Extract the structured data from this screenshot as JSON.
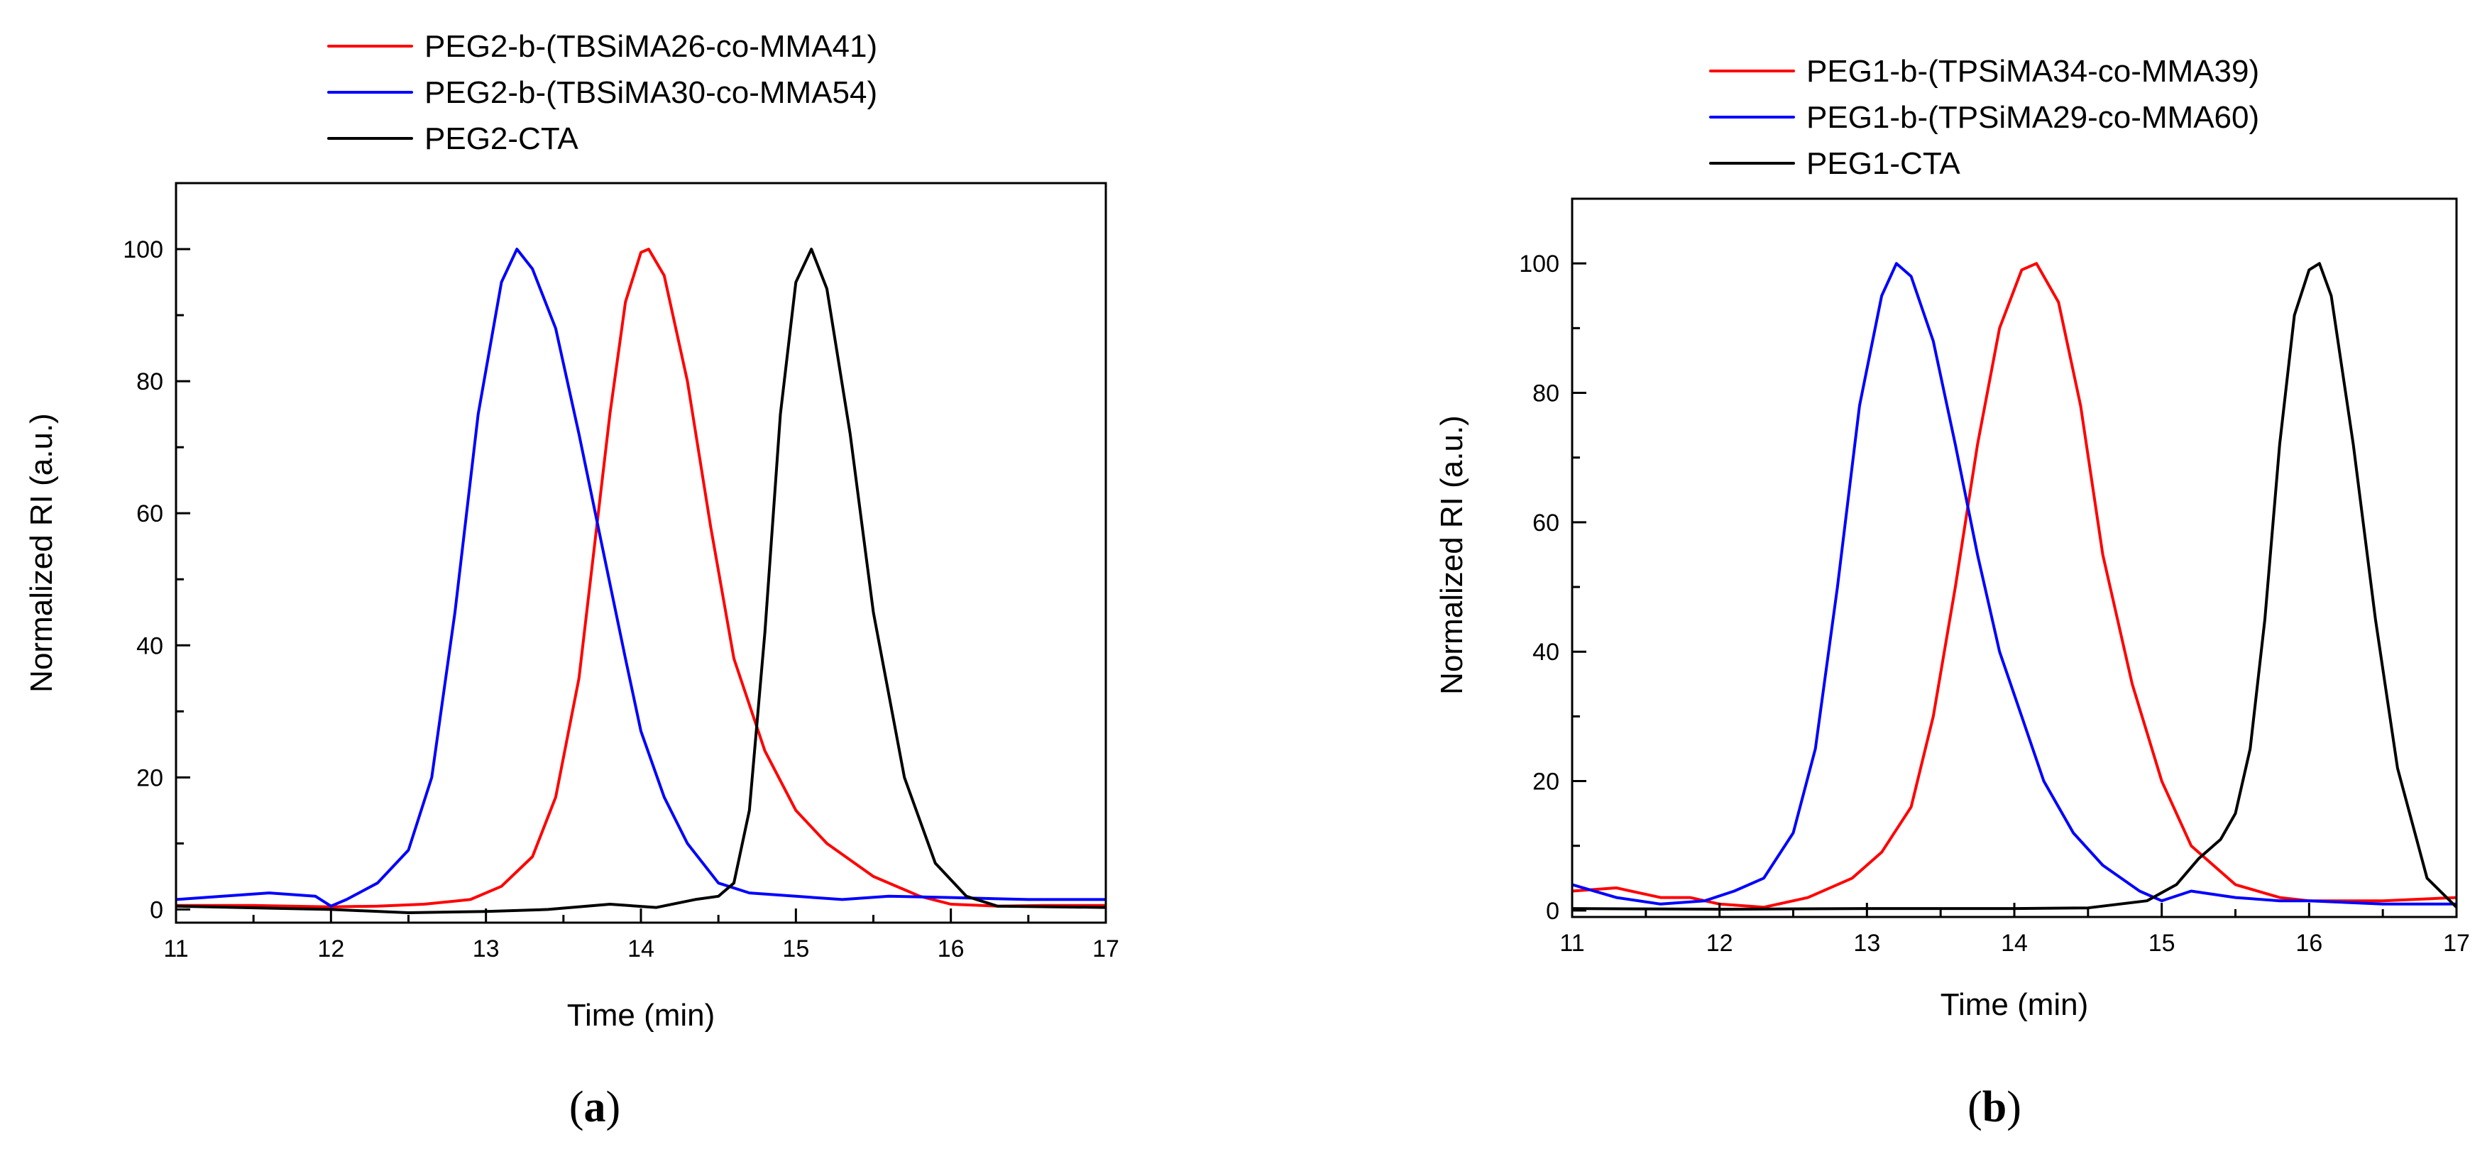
{
  "colors": {
    "red": "#ff0000",
    "blue": "#0000ff",
    "black": "#000000"
  },
  "chart_data": [
    {
      "type": "line",
      "panel_label": "a",
      "xlabel": "Time (min)",
      "ylabel": "Normalized RI (a.u.)",
      "xlim": [
        11,
        17
      ],
      "ylim": [
        -2,
        110
      ],
      "xticks": [
        11,
        12,
        13,
        14,
        15,
        16,
        17
      ],
      "yticks": [
        0,
        20,
        40,
        60,
        80,
        100
      ],
      "legend_position": "top-left-outside",
      "grid": false,
      "series": [
        {
          "name": "PEG2-b-(TBSiMA26-co-MMA41)",
          "color": "#ff0000",
          "x": [
            11,
            11.5,
            12,
            12.3,
            12.6,
            12.9,
            13.1,
            13.3,
            13.45,
            13.6,
            13.7,
            13.8,
            13.9,
            14.0,
            14.05,
            14.15,
            14.3,
            14.45,
            14.6,
            14.8,
            15.0,
            15.2,
            15.5,
            15.8,
            16.0,
            16.3,
            16.6,
            17
          ],
          "y": [
            0.6,
            0.6,
            0.4,
            0.5,
            0.8,
            1.5,
            3.5,
            8,
            17,
            35,
            55,
            75,
            92,
            99.5,
            100,
            96,
            80,
            58,
            38,
            24,
            15,
            10,
            5,
            2,
            0.8,
            0.5,
            0.6,
            0.6
          ]
        },
        {
          "name": "PEG2-b-(TBSiMA30-co-MMA54)",
          "color": "#0000ff",
          "x": [
            11,
            11.3,
            11.6,
            11.9,
            12.0,
            12.1,
            12.3,
            12.5,
            12.65,
            12.8,
            12.95,
            13.1,
            13.2,
            13.3,
            13.45,
            13.6,
            13.75,
            13.9,
            14.0,
            14.15,
            14.3,
            14.5,
            14.7,
            15.0,
            15.3,
            15.6,
            16.0,
            16.5,
            17
          ],
          "y": [
            1.5,
            2,
            2.5,
            2,
            0.5,
            1.5,
            4,
            9,
            20,
            45,
            75,
            95,
            100,
            97,
            88,
            72,
            55,
            38,
            27,
            17,
            10,
            4,
            2.5,
            2,
            1.5,
            2,
            1.8,
            1.5,
            1.5
          ]
        },
        {
          "name": "PEG2-CTA",
          "color": "#000000",
          "x": [
            11,
            12,
            12.5,
            13,
            13.4,
            13.8,
            14.1,
            14.35,
            14.5,
            14.6,
            14.7,
            14.8,
            14.9,
            15.0,
            15.1,
            15.2,
            15.35,
            15.5,
            15.7,
            15.9,
            16.1,
            16.3,
            17
          ],
          "y": [
            0.5,
            0,
            -0.5,
            -0.3,
            0,
            0.8,
            0.3,
            1.5,
            2,
            4,
            15,
            42,
            75,
            95,
            100,
            94,
            72,
            45,
            20,
            7,
            2,
            0.5,
            0.3
          ]
        }
      ]
    },
    {
      "type": "line",
      "panel_label": "b",
      "xlabel": "Time (min)",
      "ylabel": "Normalized RI (a.u.)",
      "xlim": [
        11,
        17
      ],
      "ylim": [
        -1,
        110
      ],
      "xticks": [
        11,
        12,
        13,
        14,
        15,
        16,
        17
      ],
      "yticks": [
        0,
        20,
        40,
        60,
        80,
        100
      ],
      "legend_position": "top-left-outside",
      "grid": false,
      "series": [
        {
          "name": "PEG1-b-(TPSiMA34-co-MMA39)",
          "color": "#ff0000",
          "x": [
            11,
            11.3,
            11.6,
            11.8,
            12.0,
            12.3,
            12.6,
            12.9,
            13.1,
            13.3,
            13.45,
            13.6,
            13.75,
            13.9,
            14.05,
            14.15,
            14.3,
            14.45,
            14.6,
            14.8,
            15.0,
            15.2,
            15.5,
            15.8,
            16.0,
            16.5,
            17
          ],
          "y": [
            3,
            3.5,
            2,
            2,
            1,
            0.5,
            2,
            5,
            9,
            16,
            30,
            50,
            72,
            90,
            99,
            100,
            94,
            78,
            55,
            35,
            20,
            10,
            4,
            2,
            1.5,
            1.5,
            2
          ]
        },
        {
          "name": "PEG1-b-(TPSiMA29-co-MMA60)",
          "color": "#0000ff",
          "x": [
            11,
            11.3,
            11.6,
            11.9,
            12.1,
            12.3,
            12.5,
            12.65,
            12.8,
            12.95,
            13.1,
            13.2,
            13.3,
            13.45,
            13.6,
            13.75,
            13.9,
            14.05,
            14.2,
            14.4,
            14.6,
            14.85,
            15.0,
            15.2,
            15.5,
            15.8,
            16.0,
            16.5,
            17
          ],
          "y": [
            4,
            2,
            1,
            1.5,
            3,
            5,
            12,
            25,
            50,
            78,
            95,
            100,
            98,
            88,
            72,
            55,
            40,
            30,
            20,
            12,
            7,
            3,
            1.5,
            3,
            2,
            1.5,
            1.5,
            1,
            1
          ]
        },
        {
          "name": "PEG1-CTA",
          "color": "#000000",
          "x": [
            11,
            12,
            13,
            14,
            14.5,
            14.9,
            15.1,
            15.25,
            15.4,
            15.5,
            15.6,
            15.7,
            15.8,
            15.9,
            16.0,
            16.07,
            16.15,
            16.3,
            16.45,
            16.6,
            16.8,
            17
          ],
          "y": [
            0.3,
            0.2,
            0.3,
            0.3,
            0.4,
            1.5,
            4,
            8,
            11,
            15,
            25,
            45,
            72,
            92,
            99,
            100,
            95,
            72,
            45,
            22,
            5,
            0.5
          ]
        }
      ]
    }
  ]
}
